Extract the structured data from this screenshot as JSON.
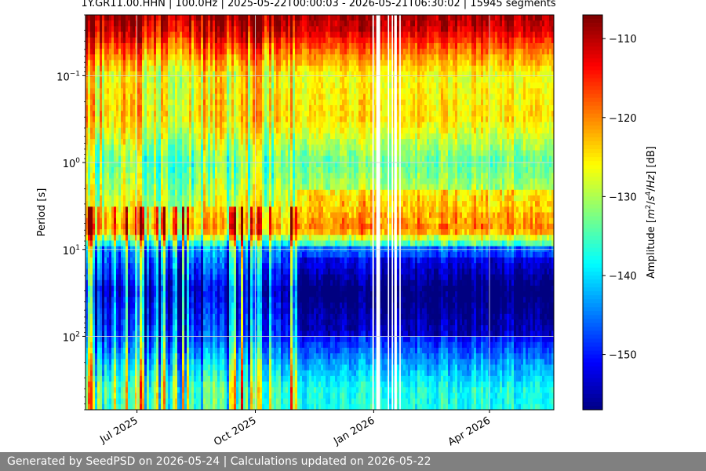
{
  "page": {
    "footer_text": "Generated by SeedPSD on 2026-05-24 | Calculations updated on 2026-05-22"
  },
  "colors": {
    "footer_background": "#808080",
    "gap_color": "#ffffff",
    "grid_color": "#d9d9d9",
    "colormap": "jet"
  },
  "chart_data": {
    "type": "heatmap",
    "title": "1Y.GR11.00.HHN | 100.0Hz | 2025-05-22T00:00:03 - 2026-05-21T06:30:02 | 15945 segments",
    "xlabel": "",
    "ylabel": "Period [s]",
    "y_scale": "log",
    "y_inverted": true,
    "x_range": [
      "2025-05-22",
      "2026-05-21"
    ],
    "y_range_seconds": [
      0.02,
      700
    ],
    "x_ticks": [
      {
        "label": "Jul 2025",
        "date": "2025-07-01"
      },
      {
        "label": "Oct 2025",
        "date": "2025-10-01"
      },
      {
        "label": "Jan 2026",
        "date": "2026-01-01"
      },
      {
        "label": "Apr 2026",
        "date": "2026-04-01"
      }
    ],
    "y_ticks": [
      {
        "base": "10",
        "exp": "−1",
        "value": 0.1
      },
      {
        "base": "10",
        "exp": "0",
        "value": 1
      },
      {
        "base": "10",
        "exp": "1",
        "value": 10
      },
      {
        "base": "10",
        "exp": "2",
        "value": 100
      }
    ],
    "grid": true,
    "colorbar": {
      "label_parts": [
        "Amplitude [",
        "m",
        "2",
        "/",
        "s",
        "4",
        "/",
        "Hz",
        "] [dB]"
      ],
      "range_db": [
        -157,
        -107
      ],
      "ticks": [
        {
          "label": "−110",
          "value": -110
        },
        {
          "label": "−120",
          "value": -120
        },
        {
          "label": "−130",
          "value": -130
        },
        {
          "label": "−140",
          "value": -140
        },
        {
          "label": "−150",
          "value": -150
        }
      ]
    },
    "data_gaps": [
      [
        "2025-12-31",
        "2026-01-01"
      ],
      [
        "2026-01-03",
        "2026-01-06"
      ],
      [
        "2026-01-12",
        "2026-01-13"
      ],
      [
        "2026-01-15",
        "2026-01-16"
      ],
      [
        "2026-01-17",
        "2026-01-19"
      ],
      [
        "2026-01-21",
        "2026-01-22"
      ]
    ],
    "spectrum_profile_db": [
      {
        "period": 0.02,
        "db": -108
      },
      {
        "period": 0.03,
        "db": -111
      },
      {
        "period": 0.05,
        "db": -118
      },
      {
        "period": 0.1,
        "db": -126
      },
      {
        "period": 0.3,
        "db": -124
      },
      {
        "period": 1,
        "db": -133
      },
      {
        "period": 3,
        "db": -128
      },
      {
        "period": 6,
        "db": -124
      },
      {
        "period": 10,
        "db": -146
      },
      {
        "period": 30,
        "db": -155
      },
      {
        "period": 100,
        "db": -150
      },
      {
        "period": 200,
        "db": -143
      },
      {
        "period": 400,
        "db": -137
      }
    ]
  }
}
